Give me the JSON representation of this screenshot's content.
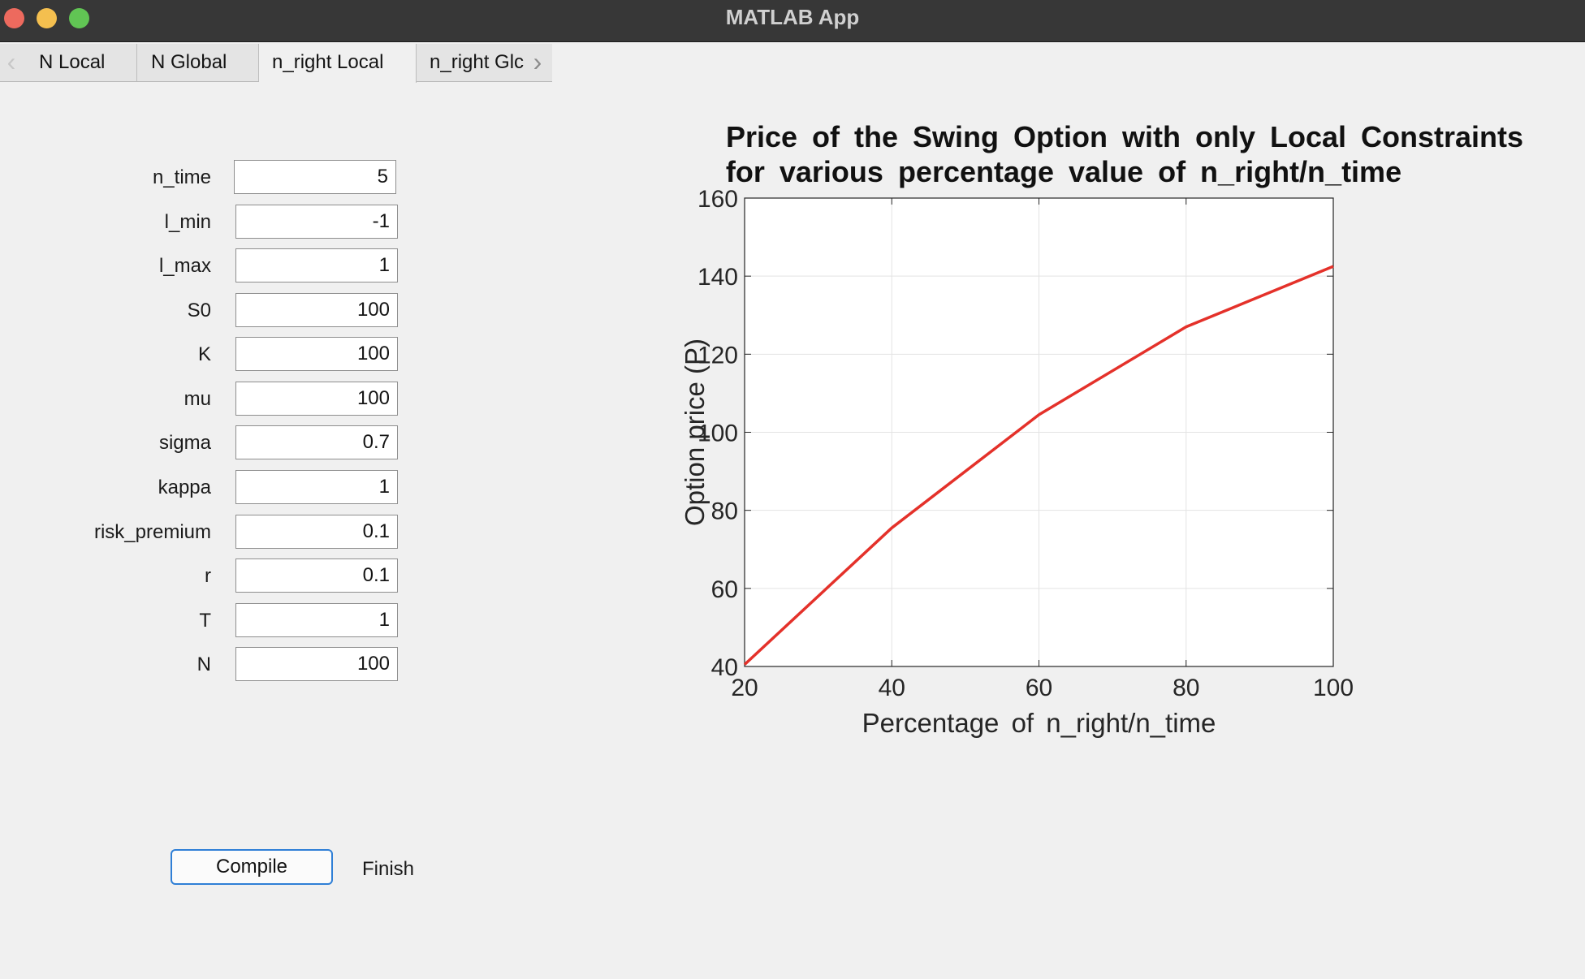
{
  "window": {
    "title": "MATLAB App"
  },
  "tabs": [
    {
      "label": "N Local",
      "active": false
    },
    {
      "label": "N Global",
      "active": false
    },
    {
      "label": "n_right Local",
      "active": true
    },
    {
      "label": "n_right Glc",
      "active": false
    }
  ],
  "params": [
    {
      "label": "n_time",
      "value": "5"
    },
    {
      "label": "l_min",
      "value": "-1"
    },
    {
      "label": "l_max",
      "value": "1"
    },
    {
      "label": "S0",
      "value": "100"
    },
    {
      "label": "K",
      "value": "100"
    },
    {
      "label": "mu",
      "value": "100"
    },
    {
      "label": "sigma",
      "value": "0.7"
    },
    {
      "label": "kappa",
      "value": "1"
    },
    {
      "label": "risk_premium",
      "value": "0.1"
    },
    {
      "label": "r",
      "value": "0.1"
    },
    {
      "label": "T",
      "value": "1"
    },
    {
      "label": "N",
      "value": "100"
    }
  ],
  "actions": {
    "compile_label": "Compile",
    "finish_label": "Finish"
  },
  "icons": {
    "tab_scroll_left": "chevron-left-icon",
    "tab_scroll_right": "chevron-right-icon"
  },
  "colors": {
    "line": "#e4312a",
    "compile_border": "#2f7fd6"
  },
  "chart_data": {
    "type": "line",
    "title_line1": "Price of the Swing Option with only Local Constraints",
    "title_line2": "for various percentage value of n_right/n_time",
    "xlabel": "Percentage of n_right/n_time",
    "ylabel": "Option price (P)",
    "xlim": [
      20,
      100
    ],
    "ylim": [
      40,
      160
    ],
    "xticks": [
      20,
      40,
      60,
      80,
      100
    ],
    "yticks": [
      40,
      60,
      80,
      100,
      120,
      140,
      160
    ],
    "grid": true,
    "series": [
      {
        "x": [
          20,
          40,
          60,
          80,
          100
        ],
        "y": [
          40.5,
          75.5,
          104.5,
          127,
          142.5
        ],
        "color": "#e4312a"
      }
    ]
  }
}
